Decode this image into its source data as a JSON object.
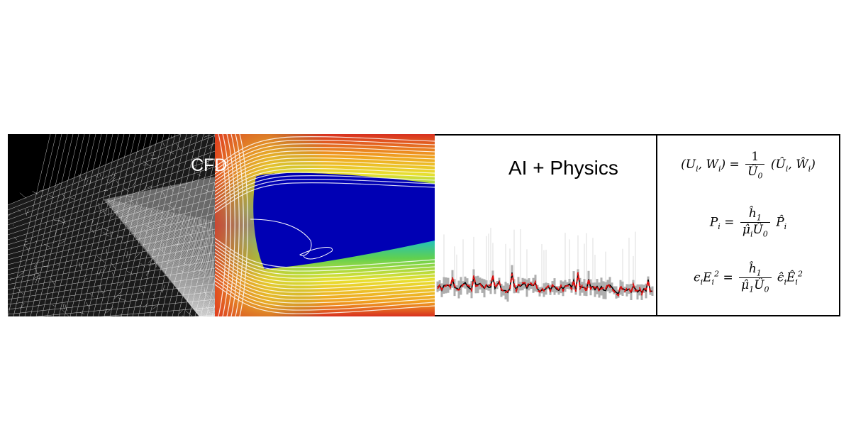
{
  "panels": {
    "cfd_label": "CFD",
    "ai_title": "AI + Physics"
  },
  "equations": [
    "(U_i, W_i) = 1 / Û_0 (Û_i, Ŵ_i)",
    "P_i = ĥ_1 / (μ̂_i Û_0) P̂_i",
    "ε_i E_i^2 = ĥ_1 / (μ̂_1 Û_0) ε̂_i Ê_i^2"
  ],
  "colors": {
    "mesh_bg": "#000000",
    "mesh_lines": "#ffffff",
    "cfd_core": "#0000b4",
    "series_observed": "#000000",
    "series_predicted": "#e01010",
    "band": "#8c8c8c"
  }
}
